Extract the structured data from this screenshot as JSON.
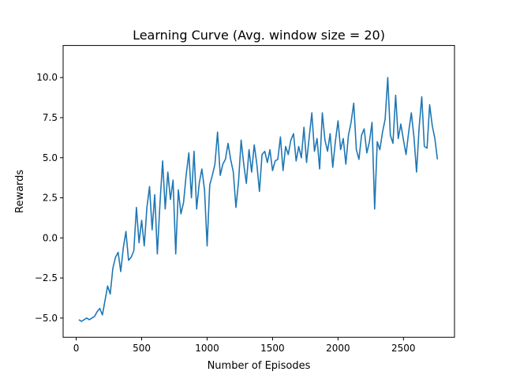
{
  "chart_data": {
    "type": "line",
    "title": "Learning Curve (Avg. window size = 20)",
    "xlabel": "Number of Episodes",
    "ylabel": "Rewards",
    "xlim": [
      -100,
      2890
    ],
    "ylim": [
      -6.2,
      12.0
    ],
    "xticks": [
      0,
      500,
      1000,
      1500,
      2000,
      2500
    ],
    "yticks": [
      -5.0,
      -2.5,
      0.0,
      2.5,
      5.0,
      7.5,
      10.0
    ],
    "ytick_labels": [
      "−5.0",
      "−2.5",
      "0.0",
      "2.5",
      "5.0",
      "7.5",
      "10.0"
    ],
    "grid": false,
    "series": [
      {
        "color": "#1f77b4",
        "x": [
          20,
          40,
          60,
          80,
          100,
          120,
          140,
          160,
          180,
          200,
          220,
          240,
          260,
          280,
          300,
          320,
          340,
          360,
          380,
          400,
          420,
          440,
          460,
          480,
          500,
          520,
          540,
          560,
          580,
          600,
          620,
          640,
          660,
          680,
          700,
          720,
          740,
          760,
          780,
          800,
          820,
          840,
          860,
          880,
          900,
          920,
          940,
          960,
          980,
          1000,
          1020,
          1040,
          1060,
          1080,
          1100,
          1120,
          1140,
          1160,
          1180,
          1200,
          1220,
          1240,
          1260,
          1280,
          1300,
          1320,
          1340,
          1360,
          1380,
          1400,
          1420,
          1440,
          1460,
          1480,
          1500,
          1520,
          1540,
          1560,
          1580,
          1600,
          1620,
          1640,
          1660,
          1680,
          1700,
          1720,
          1740,
          1760,
          1780,
          1800,
          1820,
          1840,
          1860,
          1880,
          1900,
          1920,
          1940,
          1960,
          1980,
          2000,
          2020,
          2040,
          2060,
          2080,
          2100,
          2120,
          2140,
          2160,
          2180,
          2200,
          2220,
          2240,
          2260,
          2280,
          2300,
          2320,
          2340,
          2360,
          2380,
          2400,
          2420,
          2440,
          2460,
          2480,
          2500,
          2520,
          2540,
          2560,
          2580,
          2600,
          2620,
          2640,
          2660,
          2680,
          2700,
          2720,
          2740,
          2760
        ],
        "y": [
          -5.1,
          -5.2,
          -5.1,
          -5.0,
          -5.1,
          -5.0,
          -4.9,
          -4.6,
          -4.4,
          -4.8,
          -3.9,
          -3.0,
          -3.5,
          -1.9,
          -1.2,
          -0.9,
          -2.1,
          -0.6,
          0.4,
          -1.4,
          -1.2,
          -0.8,
          1.9,
          -0.3,
          1.1,
          -0.5,
          1.9,
          3.2,
          0.5,
          2.7,
          -1.0,
          2.2,
          4.8,
          1.8,
          4.1,
          2.4,
          3.6,
          -1.0,
          3.0,
          1.5,
          2.2,
          3.9,
          5.3,
          2.5,
          5.4,
          1.8,
          3.4,
          4.3,
          3.0,
          -0.5,
          3.3,
          3.9,
          4.6,
          6.6,
          3.9,
          4.6,
          4.9,
          5.9,
          4.9,
          4.1,
          1.9,
          3.5,
          6.1,
          4.6,
          3.4,
          5.5,
          4.1,
          5.8,
          4.6,
          2.9,
          5.2,
          5.4,
          4.7,
          5.5,
          4.2,
          4.8,
          4.9,
          6.3,
          4.2,
          5.7,
          5.2,
          6.1,
          6.5,
          4.8,
          5.7,
          5.0,
          6.9,
          4.7,
          6.3,
          7.8,
          5.4,
          6.2,
          4.3,
          7.8,
          6.1,
          5.4,
          6.5,
          4.4,
          6.0,
          7.3,
          5.5,
          6.2,
          4.6,
          6.4,
          7.2,
          8.4,
          5.5,
          4.9,
          6.4,
          6.8,
          5.3,
          6.0,
          7.2,
          1.8,
          6.0,
          5.5,
          6.6,
          7.4,
          10.0,
          6.4,
          5.9,
          8.9,
          6.2,
          7.1,
          6.1,
          5.2,
          6.6,
          7.8,
          6.3,
          4.1,
          6.9,
          8.8,
          5.7,
          5.6,
          8.3,
          7.0,
          6.2,
          4.9
        ]
      }
    ]
  }
}
